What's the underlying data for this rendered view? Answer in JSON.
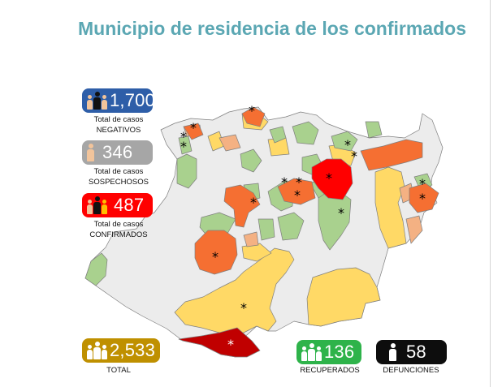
{
  "title": "Municipio de residencia de los confirmados",
  "stats": {
    "negativos": {
      "value": "1,700",
      "line1": "Total de casos",
      "line2": "NEGATIVOS",
      "color": "#2e5ea8"
    },
    "sospechosos": {
      "value": "346",
      "line1": "Total de casos",
      "line2": "SOSPECHOSOS",
      "color": "#a6a6a6"
    },
    "confirmados": {
      "value": "487",
      "line1": "Total de casos",
      "line2": "CONFIRMADOS",
      "color": "#ff0000"
    },
    "total": {
      "value": "2,533",
      "label": "TOTAL",
      "color": "#bf9000"
    },
    "recuperados": {
      "value": "136",
      "label": "RECUPERADOS",
      "color": "#2eb34a"
    },
    "defunciones": {
      "value": "58",
      "label": "DEFUNCIONES",
      "color": "#0d0d0d"
    }
  },
  "map_colors": {
    "no_cases": "#ececec",
    "level_1": "#a9d18e",
    "level_2": "#ffd966",
    "level_3": "#f4b183",
    "level_4": "#f56f32",
    "level_5": "#ff0000",
    "level_6": "#c00000",
    "border": "#7f7f7f"
  },
  "asterisk": "*"
}
